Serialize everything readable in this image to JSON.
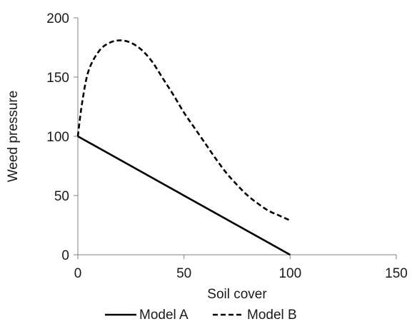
{
  "chart_data": {
    "type": "line",
    "title": "",
    "xlabel": "Soil cover",
    "ylabel": "Weed pressure",
    "xlim": [
      0,
      150
    ],
    "ylim": [
      0,
      200
    ],
    "xticks": [
      "0",
      "50",
      "100",
      "150"
    ],
    "yticks": [
      "0",
      "50",
      "100",
      "150",
      "200"
    ],
    "grid": false,
    "legend_position": "bottom",
    "series": [
      {
        "name": "Model A",
        "style": "solid",
        "color": "#000000",
        "x": [
          0,
          100
        ],
        "y": [
          100,
          0
        ]
      },
      {
        "name": "Model B",
        "style": "dashed",
        "color": "#000000",
        "x": [
          0,
          2,
          5,
          10,
          15,
          20,
          25,
          30,
          35,
          40,
          45,
          50,
          55,
          60,
          65,
          70,
          75,
          80,
          85,
          90,
          95,
          100
        ],
        "y": [
          100,
          128,
          155,
          172,
          179,
          181,
          179,
          173,
          163,
          149,
          135,
          120,
          107,
          94,
          81,
          69,
          59,
          50,
          43,
          37,
          33,
          29
        ]
      }
    ]
  }
}
